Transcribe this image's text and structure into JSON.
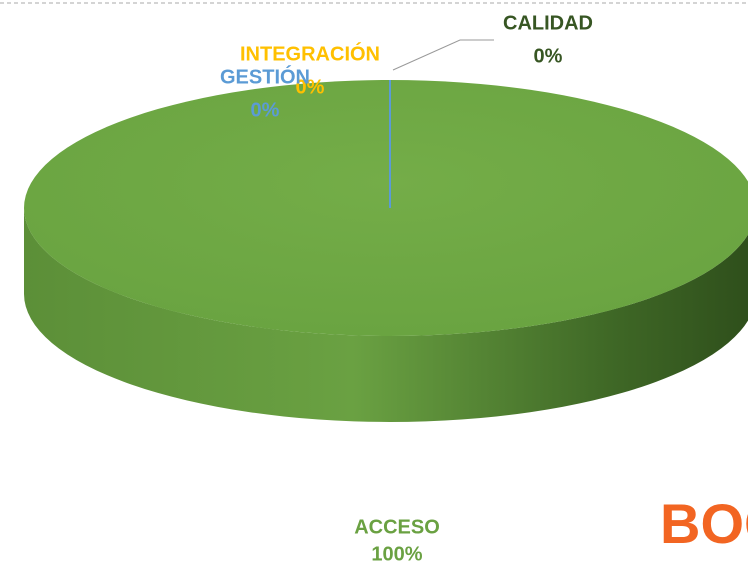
{
  "chart_data": {
    "type": "pie",
    "categories": [
      "ACCESO",
      "CALIDAD",
      "INTEGRACIÓN",
      "GESTIÓN"
    ],
    "values": [
      100,
      0,
      0,
      0
    ],
    "value_labels": [
      "100%",
      "0%",
      "0%",
      "0%"
    ],
    "colors": [
      "#70ad47",
      "#375623",
      "#ffc000",
      "#5b9bd5"
    ],
    "logo": "BOGO"
  }
}
